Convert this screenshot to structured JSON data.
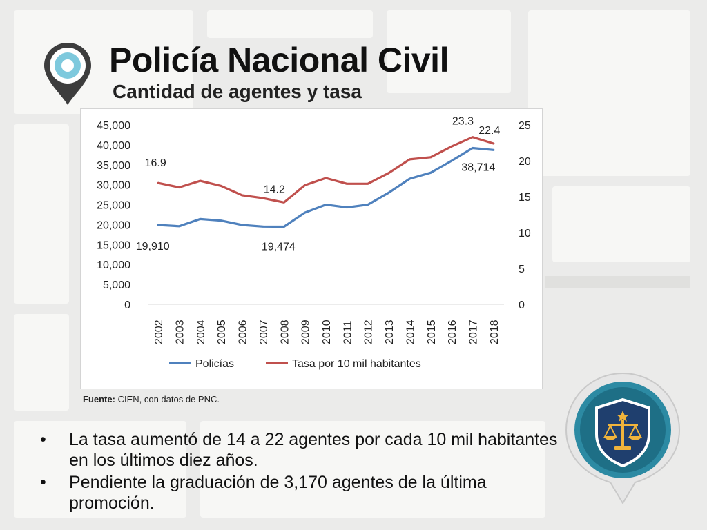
{
  "header": {
    "title": "Policía Nacional Civil",
    "subtitle": "Cantidad de agentes y tasa"
  },
  "icons": {
    "pin": "map-pin-icon",
    "badge": "police-badge-scales-icon"
  },
  "colors": {
    "series_policias": "#4f81bd",
    "series_tasa": "#c0504d",
    "pin_outer": "#3d3d3d",
    "pin_inner": "#7ec9dd",
    "badge_ring": "#2c8aa3",
    "badge_shield": "#1f3f6e",
    "badge_scales": "#f0b43c"
  },
  "chart_data": {
    "type": "line",
    "categories": [
      "2002",
      "2003",
      "2004",
      "2005",
      "2006",
      "2007",
      "2008",
      "2009",
      "2010",
      "2011",
      "2012",
      "2013",
      "2014",
      "2015",
      "2016",
      "2017",
      "2018"
    ],
    "series": [
      {
        "name": "Policías",
        "axis": "left",
        "values": [
          19910,
          19600,
          21400,
          21000,
          19900,
          19500,
          19474,
          23000,
          25000,
          24300,
          25000,
          28000,
          31500,
          33000,
          36000,
          39200,
          38714
        ]
      },
      {
        "name": "Tasa por 10 mil habitantes",
        "axis": "right",
        "values": [
          16.9,
          16.3,
          17.2,
          16.5,
          15.2,
          14.8,
          14.2,
          16.6,
          17.6,
          16.8,
          16.8,
          18.3,
          20.2,
          20.5,
          22.0,
          23.3,
          22.4
        ]
      }
    ],
    "y_left": {
      "min": 0,
      "max": 45000,
      "ticks": [
        "0",
        "5,000",
        "10,000",
        "15,000",
        "20,000",
        "25,000",
        "30,000",
        "35,000",
        "40,000",
        "45,000"
      ]
    },
    "y_right": {
      "min": 0,
      "max": 25,
      "ticks": [
        "0",
        "5",
        "10",
        "15",
        "20",
        "25"
      ]
    },
    "data_labels": [
      {
        "series": 0,
        "index": 0,
        "text": "19,910"
      },
      {
        "series": 0,
        "index": 6,
        "text": "19,474"
      },
      {
        "series": 0,
        "index": 16,
        "text": "38,714"
      },
      {
        "series": 1,
        "index": 0,
        "text": "16.9"
      },
      {
        "series": 1,
        "index": 6,
        "text": "14.2"
      },
      {
        "series": 1,
        "index": 15,
        "text": "23.3"
      },
      {
        "series": 1,
        "index": 16,
        "text": "22.4"
      }
    ],
    "legend": {
      "position": "bottom",
      "entries": [
        "Policías",
        "Tasa por 10 mil habitantes"
      ]
    },
    "grid": false
  },
  "source": {
    "label": "Fuente:",
    "text": " CIEN, con datos de PNC."
  },
  "bullets": [
    {
      "dot": "•",
      "text": "La tasa aumentó de 14 a 22 agentes por cada 10 mil habitantes en los últimos diez años."
    },
    {
      "dot": "•",
      "text": "Pendiente la graduación de 3,170 agentes de la última promoción."
    }
  ]
}
